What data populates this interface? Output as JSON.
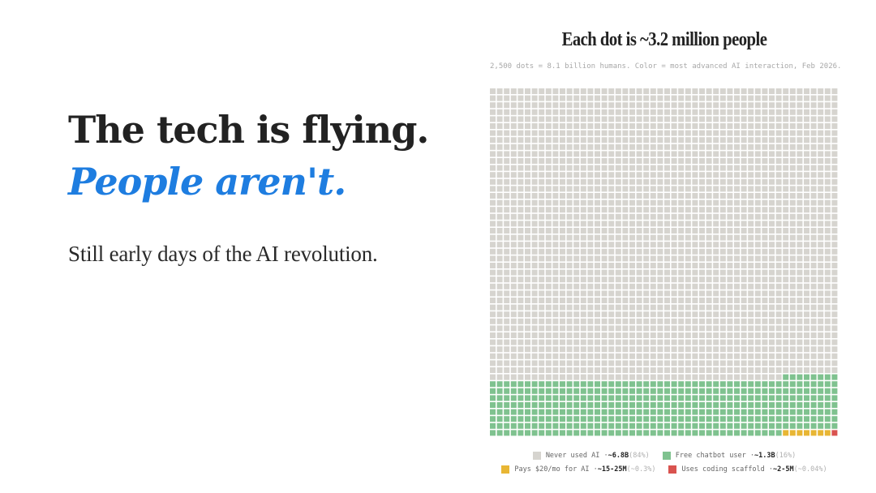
{
  "headline": {
    "line1": "The tech is flying.",
    "line2": "People aren't."
  },
  "subtitle": "Still early days of the AI revolution.",
  "colors": {
    "headline_text": "#222222",
    "headline_accent": "#1e7de0"
  },
  "chart_data": {
    "type": "waffle",
    "title": "Each dot is ~3.2 million people",
    "subtitle": "2,500 dots = 8.1 billion humans. Color = most advanced AI interaction, Feb 2026.",
    "grid": {
      "columns": 50,
      "rows": 50
    },
    "categories": [
      {
        "label": "Never used AI",
        "amount": "~6.8B",
        "percent": "(84%)",
        "dots": 2092,
        "color": "#d6d4cf"
      },
      {
        "label": "Free chatbot user",
        "amount": "~1.3B",
        "percent": "(16%)",
        "dots": 400,
        "color": "#7fc28f"
      },
      {
        "label": "Pays $20/mo for AI",
        "amount": "~15-25M",
        "percent": "(~0.3%)",
        "dots": 7,
        "color": "#e8b634"
      },
      {
        "label": "Uses coding scaffold",
        "amount": "~2-5M",
        "percent": "(~0.04%)",
        "dots": 1,
        "color": "#d9534f"
      }
    ],
    "legend_rows": [
      [
        0,
        1
      ],
      [
        2,
        3
      ]
    ]
  }
}
